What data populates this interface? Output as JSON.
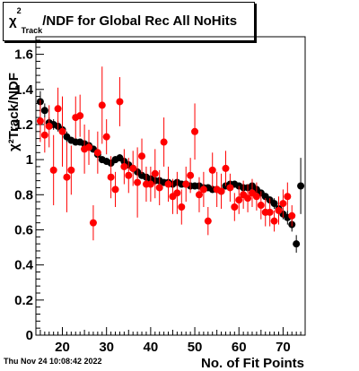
{
  "title": {
    "chi": "χ",
    "sup": "2",
    "sub": "Track",
    "rest": "/NDF for Global Rec All NoHits"
  },
  "ylabel": "χ²Track/NDF",
  "footer_date": "Thu Nov 24 10:08:42 2022",
  "chart_data": {
    "type": "scatter",
    "title": "χ²Track/NDF for Global Rec All NoHits",
    "xlabel": "No. of Fit Points",
    "ylabel": "χ²Track/NDF",
    "xlim": [
      14,
      75
    ],
    "ylim": [
      0,
      1.7
    ],
    "x_ticks": [
      20,
      30,
      40,
      50,
      60,
      70
    ],
    "y_ticks": [
      0,
      0.2,
      0.4,
      0.6,
      0.8,
      1,
      1.2,
      1.4,
      1.6
    ],
    "x_tick_labels": [
      "20",
      "30",
      "40",
      "50",
      "60",
      "70"
    ],
    "y_tick_labels": [
      "0",
      "0.2",
      "0.4",
      "0.6",
      "0.8",
      "1",
      "1.2",
      "1.4",
      "1.6"
    ],
    "grid": false,
    "colors": {
      "black": "#000000",
      "red": "#ff0000"
    },
    "series": [
      {
        "color": "#000000",
        "points": [
          [
            15,
            1.33,
            0.06
          ],
          [
            16,
            1.28,
            0.04
          ],
          [
            17,
            1.21,
            0.03
          ],
          [
            18,
            1.2,
            0.03
          ],
          [
            19,
            1.19,
            0.03
          ],
          [
            20,
            1.17,
            0.03
          ],
          [
            21,
            1.13,
            0.03
          ],
          [
            22,
            1.11,
            0.02
          ],
          [
            23,
            1.1,
            0.02
          ],
          [
            24,
            1.1,
            0.02
          ],
          [
            25,
            1.09,
            0.02
          ],
          [
            26,
            1.08,
            0.02
          ],
          [
            27,
            1.06,
            0.02
          ],
          [
            28,
            1.03,
            0.02
          ],
          [
            29,
            1.0,
            0.02
          ],
          [
            30,
            0.99,
            0.02
          ],
          [
            31,
            0.98,
            0.02
          ],
          [
            32,
            1.0,
            0.02
          ],
          [
            33,
            1.01,
            0.02
          ],
          [
            34,
            0.99,
            0.02
          ],
          [
            35,
            0.97,
            0.02
          ],
          [
            36,
            0.95,
            0.02
          ],
          [
            37,
            0.93,
            0.02
          ],
          [
            38,
            0.91,
            0.02
          ],
          [
            39,
            0.9,
            0.02
          ],
          [
            40,
            0.89,
            0.02
          ],
          [
            41,
            0.88,
            0.02
          ],
          [
            42,
            0.88,
            0.02
          ],
          [
            43,
            0.87,
            0.02
          ],
          [
            44,
            0.87,
            0.02
          ],
          [
            45,
            0.86,
            0.02
          ],
          [
            46,
            0.87,
            0.02
          ],
          [
            47,
            0.86,
            0.02
          ],
          [
            48,
            0.86,
            0.02
          ],
          [
            49,
            0.85,
            0.02
          ],
          [
            50,
            0.85,
            0.02
          ],
          [
            51,
            0.85,
            0.02
          ],
          [
            52,
            0.84,
            0.02
          ],
          [
            53,
            0.84,
            0.02
          ],
          [
            54,
            0.83,
            0.02
          ],
          [
            55,
            0.83,
            0.02
          ],
          [
            56,
            0.82,
            0.02
          ],
          [
            57,
            0.85,
            0.02
          ],
          [
            58,
            0.86,
            0.02
          ],
          [
            59,
            0.86,
            0.02
          ],
          [
            60,
            0.85,
            0.02
          ],
          [
            61,
            0.84,
            0.02
          ],
          [
            62,
            0.84,
            0.02
          ],
          [
            63,
            0.85,
            0.02
          ],
          [
            64,
            0.83,
            0.02
          ],
          [
            65,
            0.81,
            0.02
          ],
          [
            66,
            0.79,
            0.02
          ],
          [
            67,
            0.77,
            0.02
          ],
          [
            68,
            0.75,
            0.03
          ],
          [
            69,
            0.72,
            0.03
          ],
          [
            70,
            0.69,
            0.03
          ],
          [
            71,
            0.67,
            0.04
          ],
          [
            72,
            0.63,
            0.04
          ],
          [
            73,
            0.52,
            0.05
          ],
          [
            74,
            0.85,
            0.16
          ]
        ]
      },
      {
        "color": "#ff0000",
        "points": [
          [
            15,
            1.22,
            0.12
          ],
          [
            16,
            1.14,
            0.1
          ],
          [
            17,
            1.19,
            0.12
          ],
          [
            18,
            0.94,
            0.2
          ],
          [
            19,
            1.29,
            0.12
          ],
          [
            20,
            1.16,
            0.2
          ],
          [
            21,
            0.9,
            0.2
          ],
          [
            22,
            0.94,
            0.14
          ],
          [
            23,
            1.24,
            0.12
          ],
          [
            24,
            1.25,
            0.12
          ],
          [
            25,
            1.06,
            0.14
          ],
          [
            26,
            1.07,
            0.1
          ],
          [
            27,
            0.64,
            0.1
          ],
          [
            28,
            1.04,
            0.12
          ],
          [
            29,
            1.31,
            0.22
          ],
          [
            30,
            1.13,
            0.1
          ],
          [
            31,
            0.9,
            0.12
          ],
          [
            32,
            0.83,
            0.1
          ],
          [
            33,
            1.33,
            0.14
          ],
          [
            34,
            0.96,
            0.1
          ],
          [
            35,
            0.91,
            0.1
          ],
          [
            36,
            0.95,
            0.1
          ],
          [
            37,
            0.87,
            0.2
          ],
          [
            38,
            1.02,
            0.1
          ],
          [
            39,
            0.86,
            0.1
          ],
          [
            40,
            0.86,
            0.1
          ],
          [
            41,
            0.92,
            0.14
          ],
          [
            42,
            0.84,
            0.1
          ],
          [
            43,
            1.1,
            0.14
          ],
          [
            44,
            0.86,
            0.1
          ],
          [
            45,
            0.79,
            0.1
          ],
          [
            46,
            0.81,
            0.12
          ],
          [
            47,
            0.73,
            0.1
          ],
          [
            48,
            0.86,
            0.1
          ],
          [
            49,
            0.91,
            0.1
          ],
          [
            50,
            1.16,
            0.16
          ],
          [
            51,
            0.8,
            0.1
          ],
          [
            52,
            0.83,
            0.1
          ],
          [
            53,
            0.65,
            0.08
          ],
          [
            54,
            0.94,
            0.1
          ],
          [
            55,
            0.83,
            0.1
          ],
          [
            56,
            0.82,
            0.1
          ],
          [
            57,
            0.95,
            0.1
          ],
          [
            58,
            0.84,
            0.08
          ],
          [
            59,
            0.73,
            0.08
          ],
          [
            60,
            0.77,
            0.08
          ],
          [
            61,
            0.8,
            0.08
          ],
          [
            62,
            0.78,
            0.08
          ],
          [
            63,
            0.81,
            0.08
          ],
          [
            64,
            0.79,
            0.08
          ],
          [
            65,
            0.74,
            0.08
          ],
          [
            66,
            0.7,
            0.08
          ],
          [
            67,
            0.7,
            0.08
          ],
          [
            68,
            0.65,
            0.06
          ],
          [
            69,
            0.71,
            0.08
          ],
          [
            70,
            0.75,
            0.08
          ],
          [
            71,
            0.79,
            0.08
          ],
          [
            72,
            0.68,
            0.06
          ]
        ]
      }
    ]
  }
}
